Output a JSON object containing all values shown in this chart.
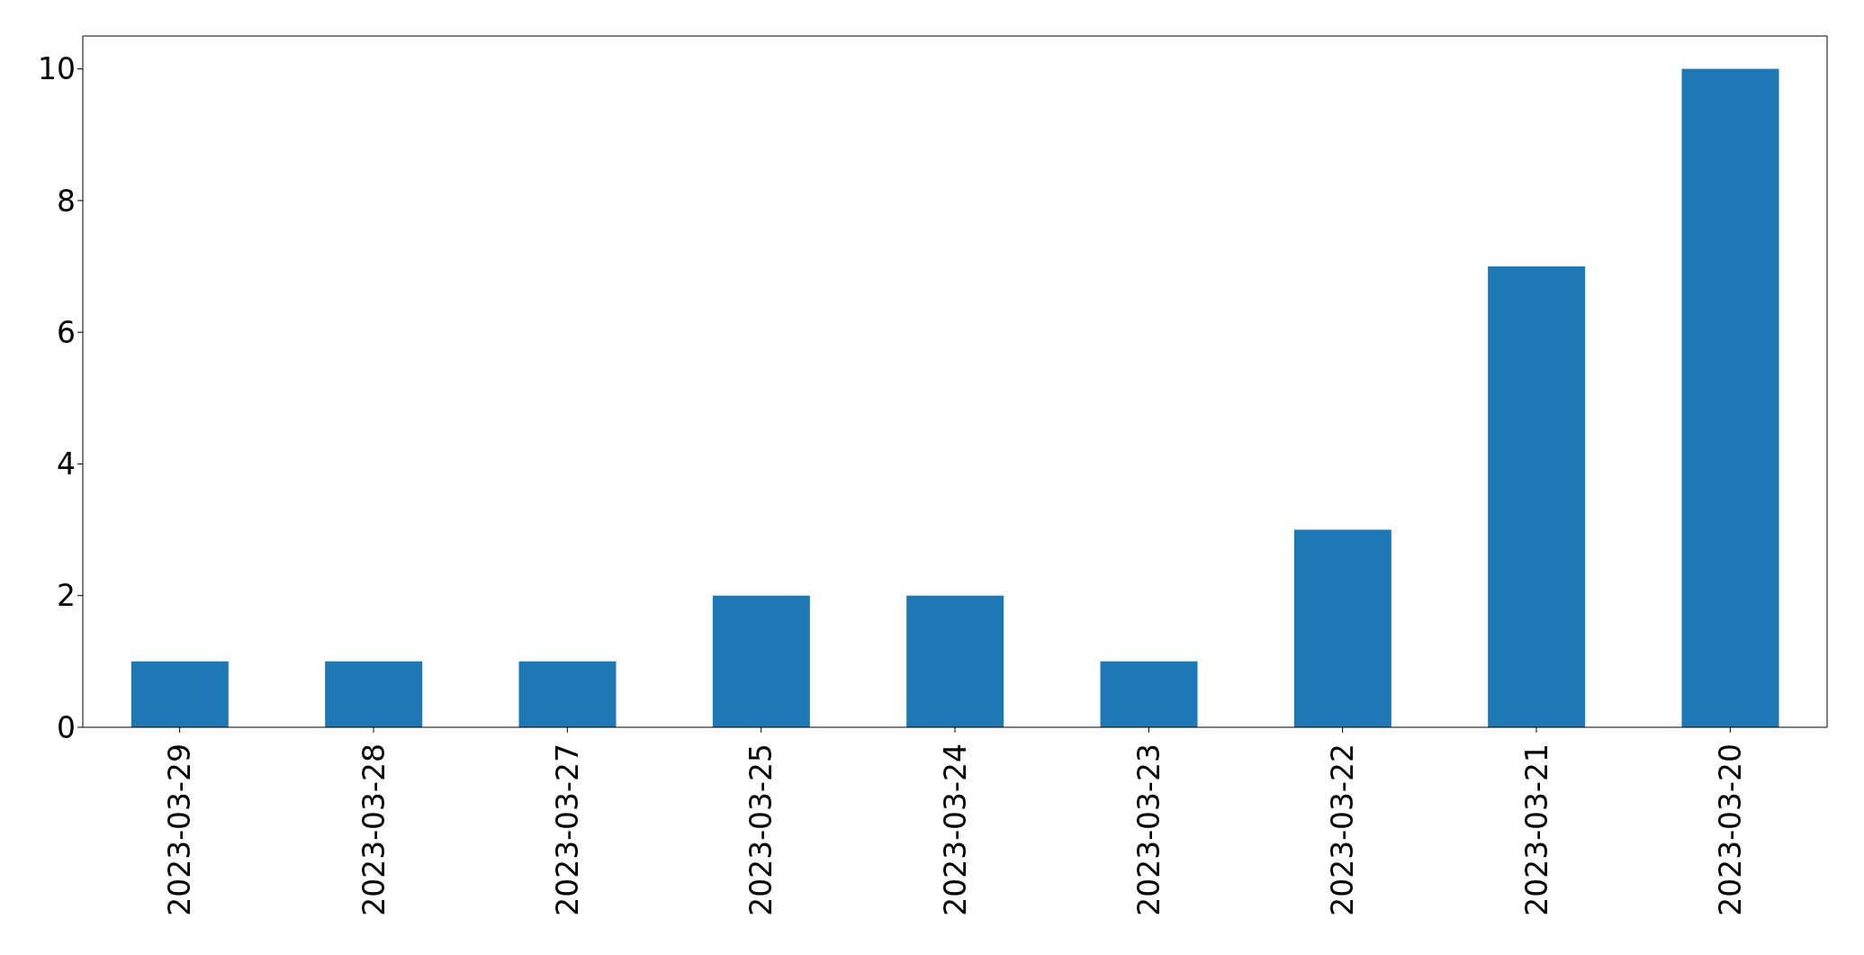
{
  "chart_data": {
    "type": "bar",
    "categories": [
      "2023-03-29",
      "2023-03-28",
      "2023-03-27",
      "2023-03-25",
      "2023-03-24",
      "2023-03-23",
      "2023-03-22",
      "2023-03-21",
      "2023-03-20"
    ],
    "values": [
      1,
      1,
      1,
      2,
      2,
      1,
      3,
      7,
      10
    ],
    "color": "#1f77b4",
    "ylim": [
      0,
      10.5
    ],
    "yticks": [
      0,
      2,
      4,
      6,
      8,
      10
    ]
  }
}
